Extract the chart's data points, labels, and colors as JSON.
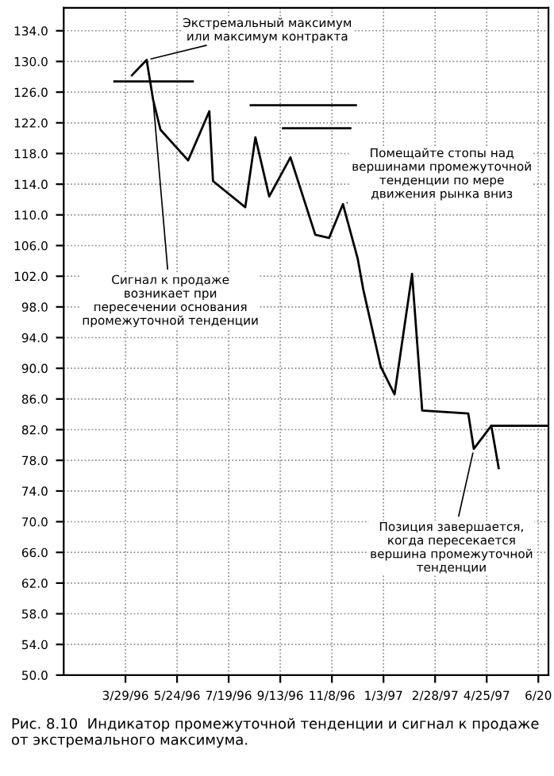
{
  "chart_data": {
    "type": "line",
    "x": [
      "1996-04-05",
      "1996-04-21",
      "1996-04-28",
      "1996-05-06",
      "1996-06-05",
      "1996-06-28",
      "1996-07-02",
      "1996-08-06",
      "1996-08-17",
      "1996-09-01",
      "1996-09-24",
      "1996-10-21",
      "1996-11-05",
      "1996-11-20",
      "1996-12-06",
      "1996-12-12",
      "1996-12-31",
      "1997-01-15",
      "1997-02-03",
      "1997-02-14",
      "1997-04-05",
      "1997-04-11",
      "1997-04-30",
      "1997-05-08"
    ],
    "series": [
      {
        "color": "#000000",
        "values": [
          128.2,
          130.2,
          125,
          121.1,
          117.1,
          123.5,
          114.4,
          111,
          120.1,
          112.4,
          117.5,
          107.4,
          107,
          111.4,
          104.3,
          100.3,
          90.2,
          86.6,
          102.3,
          84.5,
          84.1,
          79.5,
          82.5,
          77.0
        ]
      },
      {
        "type": "line",
        "color": "#000000",
        "x": [
          "1996-03-17",
          "1996-06-10"
        ],
        "values": [
          127.4,
          127.4
        ]
      },
      {
        "type": "line",
        "color": "#000000",
        "x": [
          "1996-08-12",
          "1996-12-04"
        ],
        "values": [
          124.3,
          124.3
        ]
      },
      {
        "type": "line",
        "color": "#000000",
        "x": [
          "1996-09-16",
          "1996-11-28"
        ],
        "values": [
          121.3,
          121.3
        ]
      },
      {
        "type": "line",
        "color": "#000000",
        "x": [
          "1997-04-30",
          "1997-06-29"
        ],
        "values": [
          82.5,
          82.5
        ]
      }
    ],
    "xlim": [
      "1996-01-22",
      "1997-07-01"
    ],
    "xticks": [
      {
        "value": "1996-03-29",
        "label": "3/29/96"
      },
      {
        "value": "1996-05-24",
        "label": "5/24/96"
      },
      {
        "value": "1996-07-19",
        "label": "7/19/96"
      },
      {
        "value": "1996-09-13",
        "label": "9/13/96"
      },
      {
        "value": "1996-11-08",
        "label": "11/8/96"
      },
      {
        "value": "1997-01-03",
        "label": "1/3/97"
      },
      {
        "value": "1997-02-28",
        "label": "2/28/97"
      },
      {
        "value": "1997-04-25",
        "label": "4/25/97"
      },
      {
        "value": "1997-06-20",
        "label": "6/20"
      }
    ],
    "ylim": [
      50,
      137
    ],
    "yticks": [
      {
        "value": 50,
        "label": "50.0"
      },
      {
        "value": 54,
        "label": "54.0"
      },
      {
        "value": 58,
        "label": "58.0"
      },
      {
        "value": 62,
        "label": "62.0"
      },
      {
        "value": 66,
        "label": "66.0"
      },
      {
        "value": 70,
        "label": "70.0"
      },
      {
        "value": 74,
        "label": "74.0"
      },
      {
        "value": 78,
        "label": "78.0"
      },
      {
        "value": 82,
        "label": "82.0"
      },
      {
        "value": 86,
        "label": "86.0"
      },
      {
        "value": 90,
        "label": "90.0"
      },
      {
        "value": 94,
        "label": "94.0"
      },
      {
        "value": 98,
        "label": "98.0"
      },
      {
        "value": 102,
        "label": "102.0"
      },
      {
        "value": 106,
        "label": "106.0"
      },
      {
        "value": 110,
        "label": "110.0"
      },
      {
        "value": 114,
        "label": "114.0"
      },
      {
        "value": 118,
        "label": "118.0"
      },
      {
        "value": 122,
        "label": "122.0"
      },
      {
        "value": 126,
        "label": "126.0"
      },
      {
        "value": 130,
        "label": "130.0"
      },
      {
        "value": 134,
        "label": "134.0"
      }
    ],
    "grid": true,
    "marker": "none",
    "line_style": "solid",
    "annotations": [
      {
        "text": "Экстремальный максимум\nили максимум контракта",
        "x": "1996-04-21",
        "y": 130.2
      },
      {
        "text": "Сигнал к продаже\nвозникает при\nпересечении основания\nпромежуточной тенденции",
        "x": "1996-04-28",
        "y": 125
      },
      {
        "text": "Помещайте стопы над\nвершинами промежуточной\nтенденции по мере\nдвижения рынка вниз",
        "x": "1996-11-20",
        "y": 111.4
      },
      {
        "text": "Позиция завершается,\nкогда пересекается\nвершина промежуточной\nтенденции",
        "x": "1997-04-11",
        "y": 79.5
      },
      "Рис. 8.10  Индикатор промежуточной тенденции и сигнал к продаже от экстремального максимума."
    ]
  }
}
